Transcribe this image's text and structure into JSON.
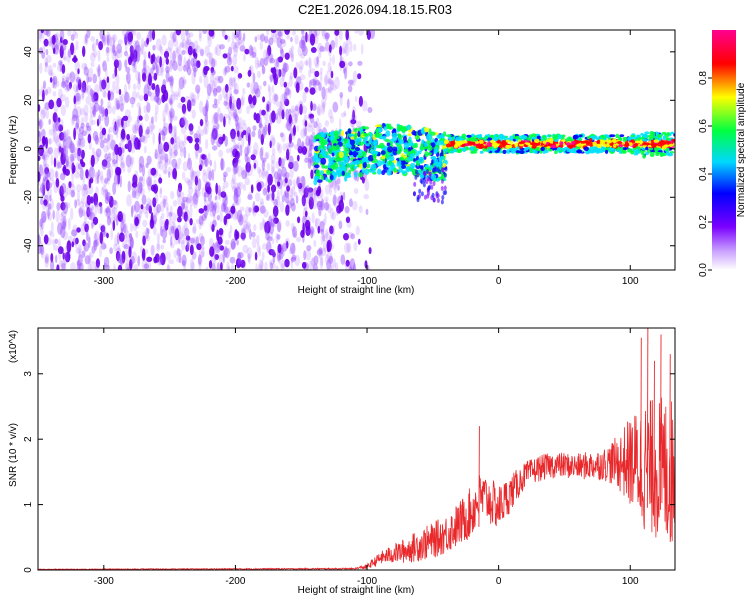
{
  "title": "C2E1.2026.094.18.15.R03",
  "chart_data": [
    {
      "type": "heatmap",
      "xlabel": "Height of straight line (km)",
      "ylabel": "Frequency (Hz)",
      "xlim": [
        -350,
        134
      ],
      "ylim": [
        -50,
        49
      ],
      "xticks": [
        -300,
        -200,
        -100,
        0,
        100
      ],
      "yticks": [
        -40,
        -20,
        0,
        20,
        40
      ],
      "colorbar": {
        "label": "Normalized spectral amplitude",
        "range": [
          0,
          1
        ],
        "ticks": [
          0.0,
          0.2,
          0.4,
          0.6,
          0.8
        ],
        "colors": [
          "#ffffff",
          "#7a00ff",
          "#0000ff",
          "#00e0ff",
          "#00ff40",
          "#ffff00",
          "#ff0000",
          "#ff00a0"
        ]
      },
      "regions": [
        {
          "x_range": [
            -350,
            -105
          ],
          "freq_range": [
            -50,
            49
          ],
          "level": 0.08
        },
        {
          "x_range": [
            -140,
            -40
          ],
          "freq_range": [
            -12,
            8
          ],
          "level": 0.3
        },
        {
          "x_range": [
            -40,
            134
          ],
          "freq_range": [
            -3,
            6
          ],
          "level": 0.7
        }
      ]
    },
    {
      "type": "line",
      "xlabel": "Height of straight line (km)",
      "ylabel": "SNR (10 * v/v)",
      "yscale_label": "(x10^4)",
      "xlim": [
        -350,
        134
      ],
      "ylim": [
        0,
        3.7
      ],
      "xticks": [
        -300,
        -200,
        -100,
        0,
        100
      ],
      "yticks": [
        0,
        1,
        2,
        3
      ],
      "color": "#e8282b",
      "envelope": {
        "x": [
          -350,
          -110,
          -100,
          -90,
          -80,
          -70,
          -60,
          -50,
          -40,
          -30,
          -20,
          -15,
          -10,
          0,
          10,
          20,
          30,
          40,
          50,
          60,
          70,
          80,
          90,
          100,
          110,
          120,
          130,
          134
        ],
        "y": [
          0.01,
          0.02,
          0.05,
          0.18,
          0.25,
          0.3,
          0.38,
          0.45,
          0.55,
          0.7,
          0.9,
          1.1,
          1.1,
          0.95,
          1.2,
          1.45,
          1.55,
          1.6,
          1.6,
          1.58,
          1.6,
          1.62,
          1.65,
          1.65,
          1.6,
          1.55,
          1.5,
          1.45
        ]
      },
      "spread": {
        "x": [
          -350,
          -110,
          -100,
          -80,
          -60,
          -40,
          -20,
          0,
          20,
          40,
          60,
          80,
          90,
          100,
          110,
          120,
          130,
          134
        ],
        "y": [
          0.005,
          0.01,
          0.04,
          0.15,
          0.25,
          0.3,
          0.4,
          0.35,
          0.2,
          0.2,
          0.2,
          0.25,
          0.4,
          0.7,
          1.0,
          1.1,
          1.2,
          1.1
        ]
      },
      "peaks": [
        {
          "x": -15,
          "y": 2.2
        },
        {
          "x": 108,
          "y": 3.55
        },
        {
          "x": 113,
          "y": 3.7
        },
        {
          "x": 118,
          "y": 3.2
        },
        {
          "x": 123,
          "y": 3.6
        },
        {
          "x": 130,
          "y": 3.3
        }
      ]
    }
  ]
}
